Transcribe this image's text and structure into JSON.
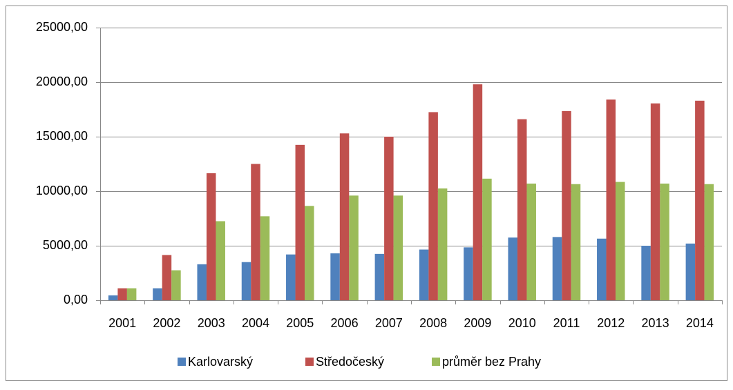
{
  "chart_data": {
    "type": "bar",
    "categories": [
      "2001",
      "2002",
      "2003",
      "2004",
      "2005",
      "2006",
      "2007",
      "2008",
      "2009",
      "2010",
      "2011",
      "2012",
      "2013",
      "2014"
    ],
    "series": [
      {
        "name": "Karlovarský",
        "color": "#4f81bd",
        "values": [
          450,
          1100,
          3300,
          3500,
          4200,
          4300,
          4250,
          4650,
          4850,
          5750,
          5800,
          5650,
          5000,
          5200
        ]
      },
      {
        "name": "Středočeský",
        "color": "#c0504d",
        "values": [
          1100,
          4150,
          11650,
          12500,
          14250,
          15300,
          15000,
          17250,
          19800,
          16600,
          17350,
          18400,
          18050,
          18300
        ]
      },
      {
        "name": "průměr bez Prahy",
        "color": "#9bbb59",
        "values": [
          1100,
          2750,
          7250,
          7700,
          8650,
          9600,
          9600,
          10250,
          11150,
          10700,
          10650,
          10850,
          10700,
          10650
        ]
      }
    ],
    "ylim": [
      0,
      25000
    ],
    "yticks": [
      {
        "value": 0,
        "label": "0,00"
      },
      {
        "value": 5000,
        "label": "5000,00"
      },
      {
        "value": 10000,
        "label": "10000,00"
      },
      {
        "value": 15000,
        "label": "15000,00"
      },
      {
        "value": 20000,
        "label": "20000,00"
      },
      {
        "value": 25000,
        "label": "25000,00"
      }
    ],
    "grid": true,
    "legend": "bottom"
  }
}
